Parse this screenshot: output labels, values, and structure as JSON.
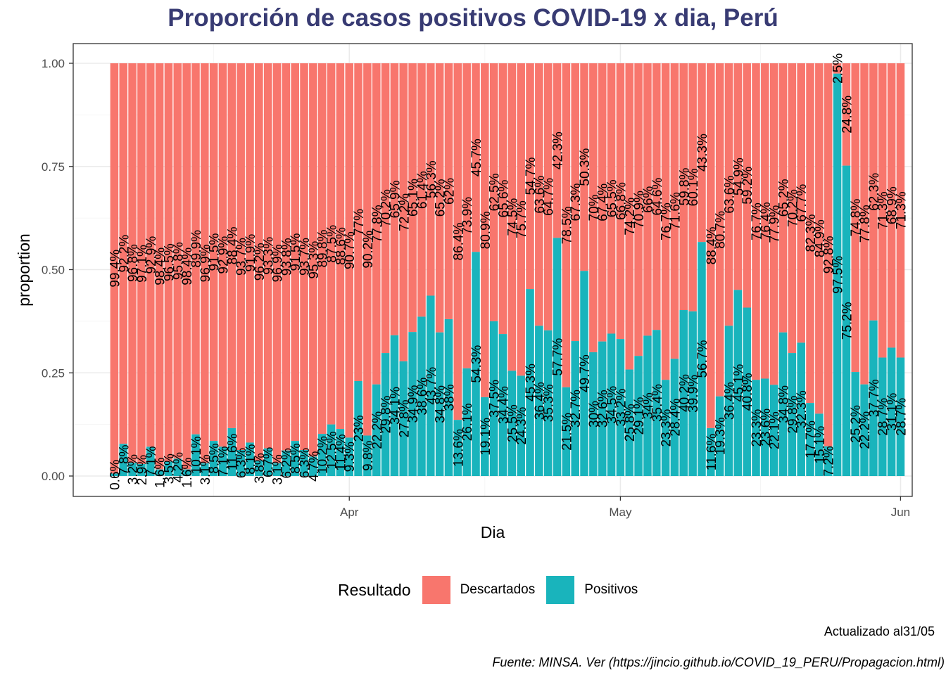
{
  "chart_data": {
    "type": "bar",
    "stacked": true,
    "title": "Proporción de casos positivos COVID-19 x dia, Perú",
    "xlabel": "Dia",
    "ylabel": "proportion",
    "ylim": [
      0,
      1
    ],
    "y_ticks": [
      "0.00",
      "0.25",
      "0.50",
      "0.75",
      "1.00"
    ],
    "x_ticks": [
      {
        "label": "Apr",
        "date": "2020-04-01"
      },
      {
        "label": "May",
        "date": "2020-05-01"
      },
      {
        "label": "Jun",
        "date": "2020-06-01"
      }
    ],
    "x_start": "2020-03-06",
    "x_end": "2020-05-31",
    "grid": true,
    "legend_title": "Resultado",
    "legend_position": "bottom",
    "series": [
      {
        "name": "Descartados",
        "color": "#f8766d"
      },
      {
        "name": "Positivos",
        "color": "#19b4bc"
      }
    ],
    "positivos_pct": [
      0.6,
      7.8,
      3.2,
      2.9,
      7.1,
      1.6,
      3.5,
      4.2,
      1.6,
      10.1,
      3.1,
      8.5,
      7.1,
      11.6,
      6.3,
      8.1,
      3.8,
      6.7,
      3.1,
      6.2,
      8.5,
      6.3,
      4.7,
      10.2,
      12.5,
      11.4,
      9.3,
      23,
      9.8,
      22.2,
      29.8,
      34.1,
      27.8,
      34.9,
      38.6,
      43.7,
      34.8,
      38,
      13.6,
      26.1,
      54.3,
      19.1,
      37.5,
      34.4,
      25.5,
      24.3,
      45.3,
      36.4,
      35.3,
      57.7,
      21.5,
      32.7,
      49.7,
      30,
      32.6,
      34.5,
      33.2,
      25.8,
      29.1,
      34,
      35.4,
      23.3,
      28.4,
      40.2,
      39.9,
      56.7,
      11.6,
      19.3,
      36.4,
      45.1,
      40.8,
      23.3,
      23.6,
      22.1,
      34.8,
      29.8,
      32.3,
      17.7,
      15.1,
      7.2,
      97.5,
      75.2,
      25.2,
      22.2,
      37.7,
      28.7,
      31.1,
      28.7
    ],
    "descartados_pct": [
      99.4,
      92.2,
      96.8,
      97.1,
      92.9,
      98.4,
      96.5,
      95.8,
      98.4,
      89.9,
      96.9,
      91.5,
      92.9,
      88.4,
      93.7,
      91.9,
      96.2,
      93.3,
      96.9,
      93.8,
      91.5,
      93.7,
      95.3,
      89.8,
      87.5,
      88.6,
      90.7,
      77,
      90.2,
      77.8,
      70.2,
      65.9,
      72.2,
      65.1,
      61.4,
      56.3,
      65.2,
      62,
      86.4,
      73.9,
      45.7,
      80.9,
      62.5,
      65.6,
      74.5,
      75.7,
      54.7,
      63.6,
      64.7,
      42.3,
      78.5,
      67.3,
      50.3,
      70,
      67.4,
      65.5,
      66.8,
      74.2,
      70.9,
      66,
      64.6,
      76.7,
      71.6,
      59.8,
      60.1,
      43.3,
      88.4,
      80.7,
      63.6,
      54.9,
      59.2,
      76.7,
      76.4,
      77.9,
      65.2,
      70.2,
      67.7,
      82.3,
      84.9,
      92.8,
      2.5,
      24.8,
      74.8,
      77.8,
      62.3,
      71.3,
      68.9,
      71.3
    ]
  },
  "caption_updated": "Actualizado al31/05",
  "caption_source": "Fuente: MINSA. Ver (https://jincio.github.io/COVID_19_PERU/Propagacion.html)"
}
